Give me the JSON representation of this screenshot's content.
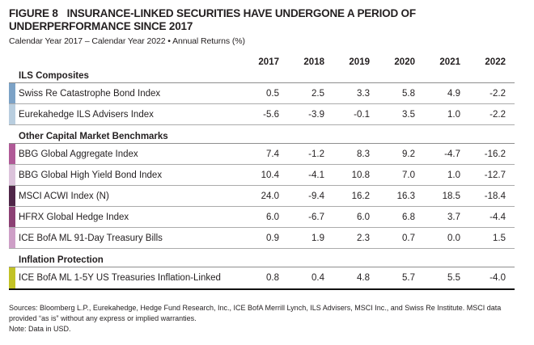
{
  "header": {
    "figure_label": "FIGURE 8",
    "title": "INSURANCE-LINKED SECURITIES HAVE UNDERGONE A PERIOD OF UNDERPERFORMANCE SINCE 2017",
    "subtitle": "Calendar Year 2017 – Calendar Year 2022 • Annual Returns (%)"
  },
  "chart_data": {
    "type": "table",
    "title": "FIGURE 8 INSURANCE-LINKED SECURITIES HAVE UNDERGONE A PERIOD OF UNDERPERFORMANCE SINCE 2017",
    "subtitle": "Calendar Year 2017 – Calendar Year 2022 • Annual Returns (%)",
    "unit": "percent",
    "columns": [
      "2017",
      "2018",
      "2019",
      "2020",
      "2021",
      "2022"
    ],
    "sections": [
      {
        "label": "ILS Composites",
        "rows": [
          {
            "label": "Swiss Re Catastrophe Bond Index",
            "swatch_color": "#7CA2C6",
            "values": [
              0.5,
              2.5,
              3.3,
              5.8,
              4.9,
              -2.2
            ]
          },
          {
            "label": "Eurekahedge ILS Advisers Index",
            "swatch_color": "#B9CEDF",
            "values": [
              -5.6,
              -3.9,
              -0.1,
              3.5,
              1.0,
              -2.2
            ]
          }
        ]
      },
      {
        "label": "Other Capital Market Benchmarks",
        "rows": [
          {
            "label": "BBG Global Aggregate Index",
            "swatch_color": "#B05A97",
            "values": [
              7.4,
              -1.2,
              8.3,
              9.2,
              -4.7,
              -16.2
            ]
          },
          {
            "label": "BBG Global High Yield Bond Index",
            "swatch_color": "#DCC3DB",
            "values": [
              10.4,
              -4.1,
              10.8,
              7.0,
              1.0,
              -12.7
            ]
          },
          {
            "label": "MSCI ACWI Index (N)",
            "swatch_color": "#4F2648",
            "values": [
              24.0,
              -9.4,
              16.2,
              16.3,
              18.5,
              -18.4
            ]
          },
          {
            "label": "HFRX Global Hedge Index",
            "swatch_color": "#8C4074",
            "values": [
              6.0,
              -6.7,
              6.0,
              6.8,
              3.7,
              -4.4
            ]
          },
          {
            "label": "ICE BofA ML 91-Day Treasury Bills",
            "swatch_color": "#CE9FC7",
            "values": [
              0.9,
              1.9,
              2.3,
              0.7,
              0.0,
              1.5
            ]
          }
        ]
      },
      {
        "label": "Inflation Protection",
        "rows": [
          {
            "label": "ICE BofA ML 1-5Y US Treasuries Inflation-Linked",
            "swatch_color": "#C2C226",
            "values": [
              0.8,
              0.4,
              4.8,
              5.7,
              5.5,
              -4.0
            ]
          }
        ]
      }
    ]
  },
  "footer": {
    "sources": "Sources: Bloomberg L.P., Eurekahedge, Hedge Fund Research, Inc., ICE BofA Merrill Lynch, ILS Advisers, MSCI Inc., and Swiss Re Institute. MSCI data provided “as is” without any express or implied warranties.",
    "note": "Note: Data in USD."
  },
  "colors": {
    "text": "#231F20",
    "row_separator": "#ABABAB",
    "section_separator": "#8E8E8E",
    "table_bottom_border": "#111111"
  }
}
